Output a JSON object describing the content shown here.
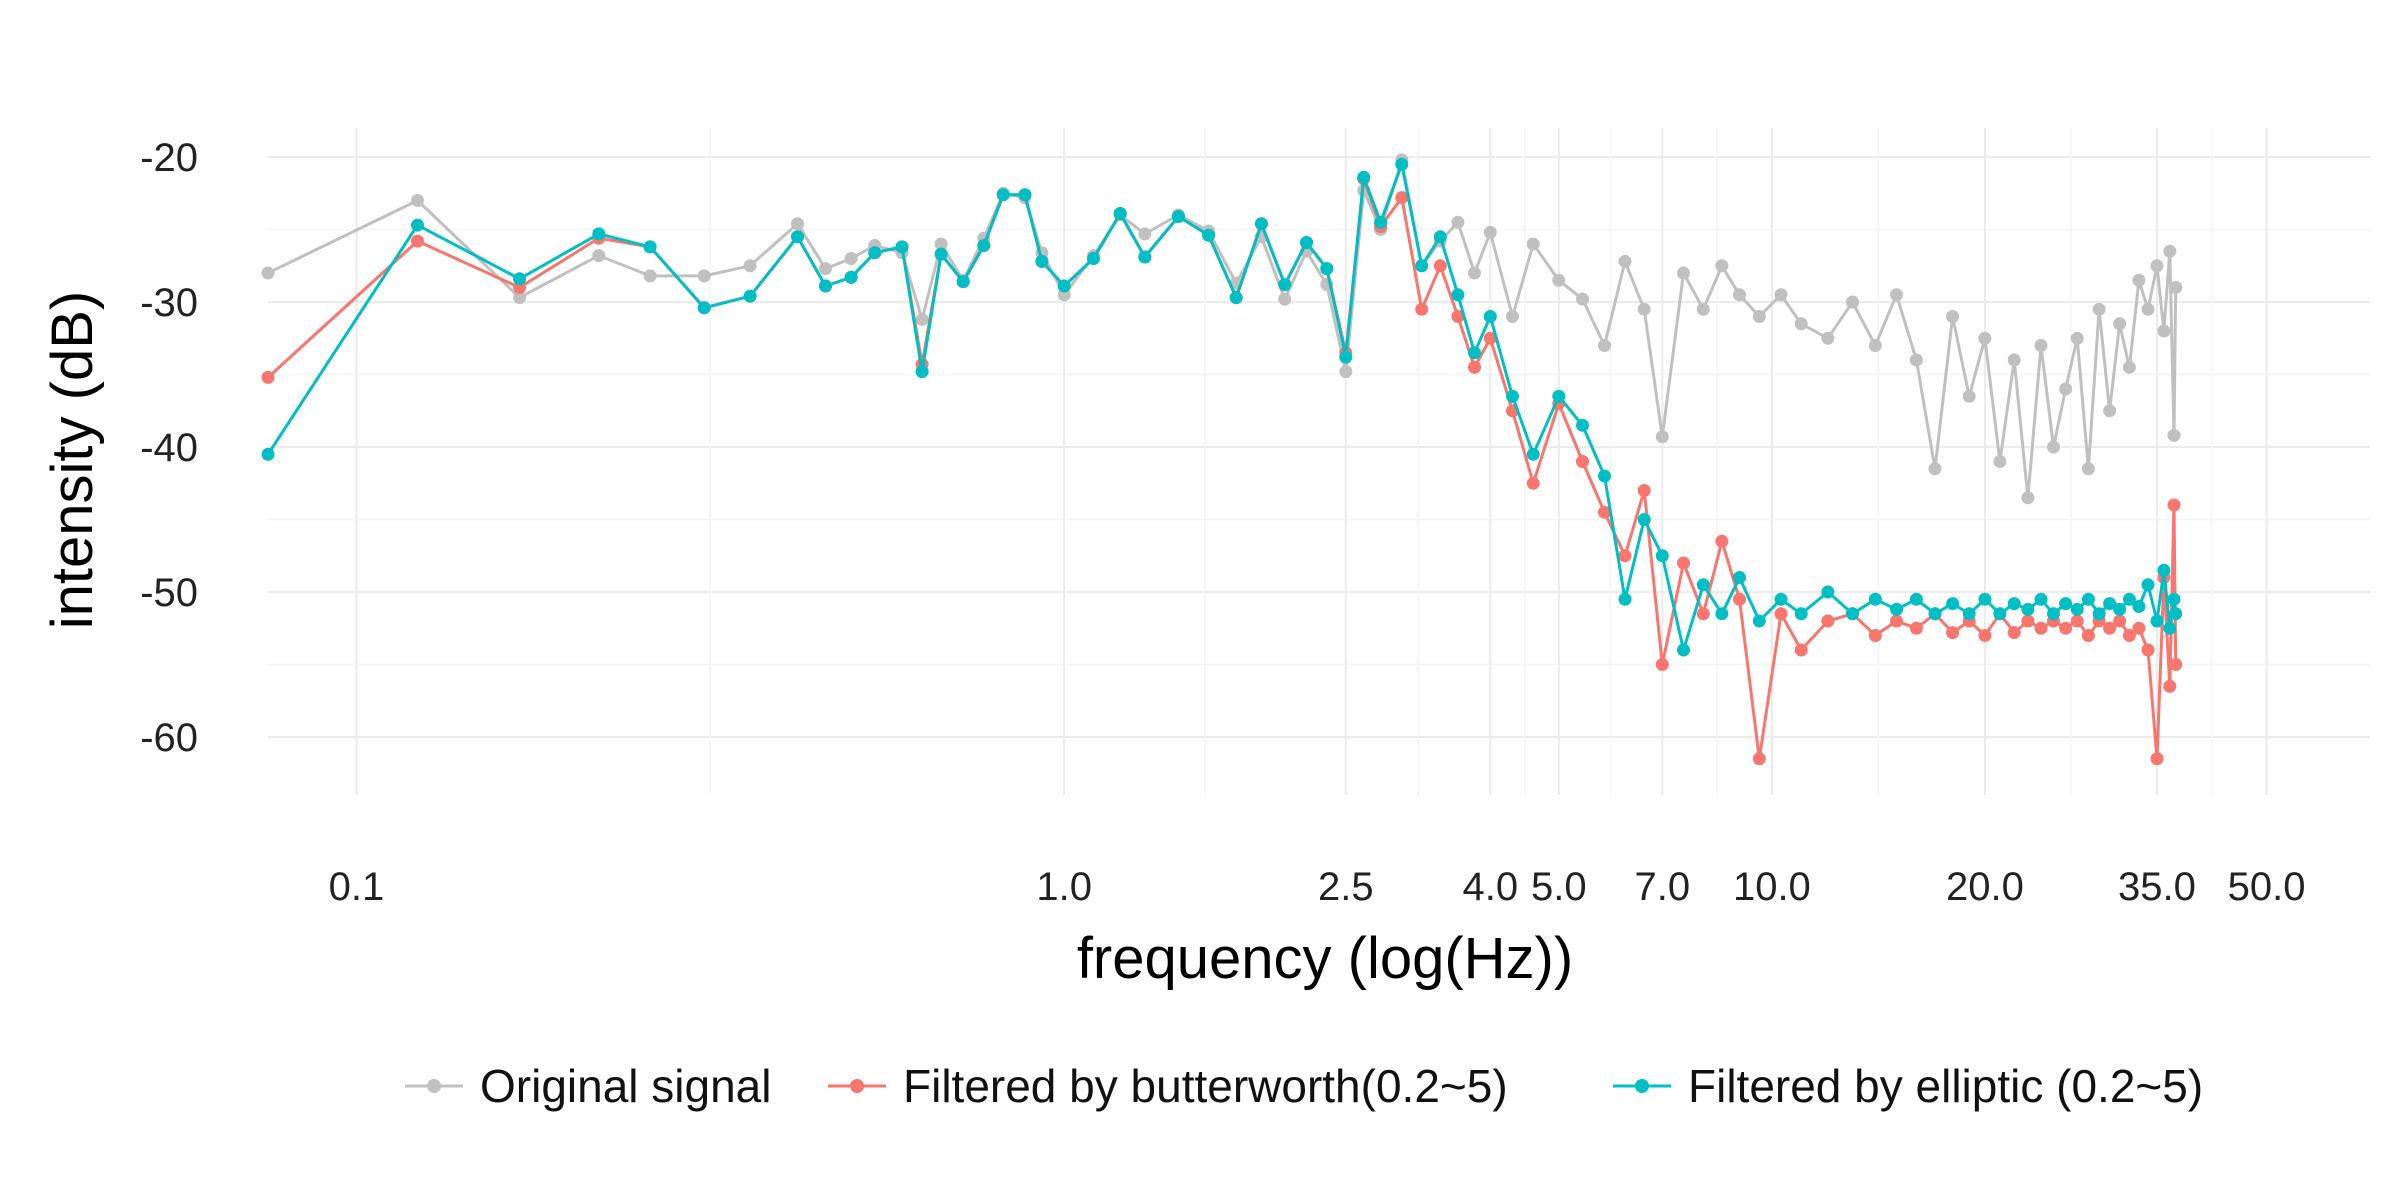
{
  "chart_data": {
    "type": "line",
    "xscale": "log",
    "xlabel": "frequency (log(Hz))",
    "ylabel": "intensity (dB)",
    "xlim": [
      0.075,
      70
    ],
    "ylim": [
      -64,
      -18
    ],
    "x_ticks": [
      {
        "value": 0.1,
        "label": "0.1"
      },
      {
        "value": 1.0,
        "label": "1.0"
      },
      {
        "value": 2.5,
        "label": "2.5"
      },
      {
        "value": 4.0,
        "label": "4.0"
      },
      {
        "value": 5.0,
        "label": "5.0"
      },
      {
        "value": 7.0,
        "label": "7.0"
      },
      {
        "value": 10.0,
        "label": "10.0"
      },
      {
        "value": 20.0,
        "label": "20.0"
      },
      {
        "value": 35.0,
        "label": "35.0"
      },
      {
        "value": 50.0,
        "label": "50.0"
      }
    ],
    "y_ticks": [
      {
        "value": -20,
        "label": "-20"
      },
      {
        "value": -30,
        "label": "-30"
      },
      {
        "value": -40,
        "label": "-40"
      },
      {
        "value": -50,
        "label": "-50"
      },
      {
        "value": -60,
        "label": "-60"
      }
    ],
    "grid": true,
    "legend_position": "bottom",
    "series": [
      {
        "name": "Original signal",
        "color": "#c0c0c0",
        "points": [
          [
            0.075,
            -28.0
          ],
          [
            0.122,
            -23.0
          ],
          [
            0.17,
            -29.7
          ],
          [
            0.22,
            -26.8
          ],
          [
            0.26,
            -28.2
          ],
          [
            0.31,
            -28.2
          ],
          [
            0.36,
            -27.5
          ],
          [
            0.42,
            -24.6
          ],
          [
            0.46,
            -27.7
          ],
          [
            0.5,
            -27.0
          ],
          [
            0.54,
            -26.1
          ],
          [
            0.59,
            -26.6
          ],
          [
            0.63,
            -31.2
          ],
          [
            0.67,
            -26.0
          ],
          [
            0.72,
            -28.5
          ],
          [
            0.77,
            -25.6
          ],
          [
            0.82,
            -22.5
          ],
          [
            0.88,
            -22.8
          ],
          [
            0.93,
            -26.6
          ],
          [
            1.0,
            -29.5
          ],
          [
            1.1,
            -26.8
          ],
          [
            1.2,
            -24.0
          ],
          [
            1.3,
            -25.3
          ],
          [
            1.45,
            -24.0
          ],
          [
            1.6,
            -25.1
          ],
          [
            1.75,
            -28.7
          ],
          [
            1.9,
            -25.5
          ],
          [
            2.05,
            -29.8
          ],
          [
            2.2,
            -26.5
          ],
          [
            2.35,
            -28.8
          ],
          [
            2.5,
            -34.8
          ],
          [
            2.65,
            -22.3
          ],
          [
            2.8,
            -25.0
          ],
          [
            3.0,
            -20.2
          ],
          [
            3.2,
            -27.5
          ],
          [
            3.4,
            -25.8
          ],
          [
            3.6,
            -24.5
          ],
          [
            3.8,
            -28.0
          ],
          [
            4.0,
            -25.2
          ],
          [
            4.3,
            -31.0
          ],
          [
            4.6,
            -26.0
          ],
          [
            5.0,
            -28.5
          ],
          [
            5.4,
            -29.8
          ],
          [
            5.8,
            -33.0
          ],
          [
            6.2,
            -27.2
          ],
          [
            6.6,
            -30.5
          ],
          [
            7.0,
            -39.3
          ],
          [
            7.5,
            -28.0
          ],
          [
            8.0,
            -30.5
          ],
          [
            8.5,
            -27.5
          ],
          [
            9.0,
            -29.5
          ],
          [
            9.6,
            -31.0
          ],
          [
            10.3,
            -29.5
          ],
          [
            11.0,
            -31.5
          ],
          [
            12.0,
            -32.5
          ],
          [
            13.0,
            -30.0
          ],
          [
            14.0,
            -33.0
          ],
          [
            15.0,
            -29.5
          ],
          [
            16.0,
            -34.0
          ],
          [
            17.0,
            -41.5
          ],
          [
            18.0,
            -31.0
          ],
          [
            19.0,
            -36.5
          ],
          [
            20.0,
            -32.5
          ],
          [
            21.0,
            -41.0
          ],
          [
            22.0,
            -34.0
          ],
          [
            23.0,
            -43.5
          ],
          [
            24.0,
            -33.0
          ],
          [
            25.0,
            -40.0
          ],
          [
            26.0,
            -36.0
          ],
          [
            27.0,
            -32.5
          ],
          [
            28.0,
            -41.5
          ],
          [
            29.0,
            -30.5
          ],
          [
            30.0,
            -37.5
          ],
          [
            31.0,
            -31.5
          ],
          [
            32.0,
            -34.5
          ],
          [
            33.0,
            -28.5
          ],
          [
            34.0,
            -30.5
          ],
          [
            35.0,
            -27.5
          ],
          [
            35.8,
            -32.0
          ],
          [
            36.5,
            -26.5
          ],
          [
            37.0,
            -39.2
          ],
          [
            37.2,
            -29.0
          ]
        ]
      },
      {
        "name": "Filtered by butterworth(0.2~5)",
        "color": "#f8766d",
        "points": [
          [
            0.075,
            -35.2
          ],
          [
            0.122,
            -25.8
          ],
          [
            0.17,
            -29.0
          ],
          [
            0.22,
            -25.6
          ],
          [
            0.26,
            -26.2
          ],
          [
            0.31,
            -30.4
          ],
          [
            0.36,
            -29.6
          ],
          [
            0.42,
            -25.5
          ],
          [
            0.46,
            -28.9
          ],
          [
            0.5,
            -28.3
          ],
          [
            0.54,
            -26.6
          ],
          [
            0.59,
            -26.2
          ],
          [
            0.63,
            -34.3
          ],
          [
            0.67,
            -26.7
          ],
          [
            0.72,
            -28.6
          ],
          [
            0.77,
            -26.1
          ],
          [
            0.82,
            -22.6
          ],
          [
            0.88,
            -22.6
          ],
          [
            0.93,
            -27.2
          ],
          [
            1.0,
            -28.9
          ],
          [
            1.1,
            -27.0
          ],
          [
            1.2,
            -23.9
          ],
          [
            1.3,
            -26.9
          ],
          [
            1.45,
            -24.1
          ],
          [
            1.6,
            -25.4
          ],
          [
            1.75,
            -29.7
          ],
          [
            1.9,
            -24.6
          ],
          [
            2.05,
            -28.8
          ],
          [
            2.2,
            -25.9
          ],
          [
            2.35,
            -27.7
          ],
          [
            2.5,
            -33.5
          ],
          [
            2.65,
            -21.5
          ],
          [
            2.8,
            -24.8
          ],
          [
            3.0,
            -22.8
          ],
          [
            3.2,
            -30.5
          ],
          [
            3.4,
            -27.5
          ],
          [
            3.6,
            -31.0
          ],
          [
            3.8,
            -34.5
          ],
          [
            4.0,
            -32.5
          ],
          [
            4.3,
            -37.5
          ],
          [
            4.6,
            -42.5
          ],
          [
            5.0,
            -37.0
          ],
          [
            5.4,
            -41.0
          ],
          [
            5.8,
            -44.5
          ],
          [
            6.2,
            -47.5
          ],
          [
            6.6,
            -43.0
          ],
          [
            7.0,
            -55.0
          ],
          [
            7.5,
            -48.0
          ],
          [
            8.0,
            -51.5
          ],
          [
            8.5,
            -46.5
          ],
          [
            9.0,
            -50.5
          ],
          [
            9.6,
            -61.5
          ],
          [
            10.3,
            -51.5
          ],
          [
            11.0,
            -54.0
          ],
          [
            12.0,
            -52.0
          ],
          [
            13.0,
            -51.5
          ],
          [
            14.0,
            -53.0
          ],
          [
            15.0,
            -52.0
          ],
          [
            16.0,
            -52.5
          ],
          [
            17.0,
            -51.5
          ],
          [
            18.0,
            -52.8
          ],
          [
            19.0,
            -52.0
          ],
          [
            20.0,
            -53.0
          ],
          [
            21.0,
            -51.5
          ],
          [
            22.0,
            -52.8
          ],
          [
            23.0,
            -52.0
          ],
          [
            24.0,
            -52.5
          ],
          [
            25.0,
            -52.0
          ],
          [
            26.0,
            -52.5
          ],
          [
            27.0,
            -52.0
          ],
          [
            28.0,
            -53.0
          ],
          [
            29.0,
            -52.0
          ],
          [
            30.0,
            -52.5
          ],
          [
            31.0,
            -52.0
          ],
          [
            32.0,
            -53.0
          ],
          [
            33.0,
            -52.5
          ],
          [
            34.0,
            -54.0
          ],
          [
            35.0,
            -61.5
          ],
          [
            35.8,
            -49.0
          ],
          [
            36.5,
            -56.5
          ],
          [
            37.0,
            -44.0
          ],
          [
            37.2,
            -55.0
          ]
        ]
      },
      {
        "name": "Filtered by elliptic (0.2~5)",
        "color": "#00bfc4",
        "points": [
          [
            0.075,
            -40.5
          ],
          [
            0.122,
            -24.7
          ],
          [
            0.17,
            -28.4
          ],
          [
            0.22,
            -25.3
          ],
          [
            0.26,
            -26.2
          ],
          [
            0.31,
            -30.4
          ],
          [
            0.36,
            -29.6
          ],
          [
            0.42,
            -25.5
          ],
          [
            0.46,
            -28.9
          ],
          [
            0.5,
            -28.3
          ],
          [
            0.54,
            -26.6
          ],
          [
            0.59,
            -26.2
          ],
          [
            0.63,
            -34.8
          ],
          [
            0.67,
            -26.7
          ],
          [
            0.72,
            -28.6
          ],
          [
            0.77,
            -26.1
          ],
          [
            0.82,
            -22.6
          ],
          [
            0.88,
            -22.6
          ],
          [
            0.93,
            -27.2
          ],
          [
            1.0,
            -28.9
          ],
          [
            1.1,
            -27.0
          ],
          [
            1.2,
            -23.9
          ],
          [
            1.3,
            -26.9
          ],
          [
            1.45,
            -24.1
          ],
          [
            1.6,
            -25.4
          ],
          [
            1.75,
            -29.7
          ],
          [
            1.9,
            -24.6
          ],
          [
            2.05,
            -28.8
          ],
          [
            2.2,
            -25.9
          ],
          [
            2.35,
            -27.7
          ],
          [
            2.5,
            -33.8
          ],
          [
            2.65,
            -21.4
          ],
          [
            2.8,
            -24.5
          ],
          [
            3.0,
            -20.5
          ],
          [
            3.2,
            -27.5
          ],
          [
            3.4,
            -25.5
          ],
          [
            3.6,
            -29.5
          ],
          [
            3.8,
            -33.5
          ],
          [
            4.0,
            -31.0
          ],
          [
            4.3,
            -36.5
          ],
          [
            4.6,
            -40.5
          ],
          [
            5.0,
            -36.5
          ],
          [
            5.4,
            -38.5
          ],
          [
            5.8,
            -42.0
          ],
          [
            6.2,
            -50.5
          ],
          [
            6.6,
            -45.0
          ],
          [
            7.0,
            -47.5
          ],
          [
            7.5,
            -54.0
          ],
          [
            8.0,
            -49.5
          ],
          [
            8.5,
            -51.5
          ],
          [
            9.0,
            -49.0
          ],
          [
            9.6,
            -52.0
          ],
          [
            10.3,
            -50.5
          ],
          [
            11.0,
            -51.5
          ],
          [
            12.0,
            -50.0
          ],
          [
            13.0,
            -51.5
          ],
          [
            14.0,
            -50.5
          ],
          [
            15.0,
            -51.2
          ],
          [
            16.0,
            -50.5
          ],
          [
            17.0,
            -51.5
          ],
          [
            18.0,
            -50.8
          ],
          [
            19.0,
            -51.5
          ],
          [
            20.0,
            -50.5
          ],
          [
            21.0,
            -51.5
          ],
          [
            22.0,
            -50.8
          ],
          [
            23.0,
            -51.2
          ],
          [
            24.0,
            -50.5
          ],
          [
            25.0,
            -51.5
          ],
          [
            26.0,
            -50.8
          ],
          [
            27.0,
            -51.2
          ],
          [
            28.0,
            -50.5
          ],
          [
            29.0,
            -51.5
          ],
          [
            30.0,
            -50.8
          ],
          [
            31.0,
            -51.2
          ],
          [
            32.0,
            -50.5
          ],
          [
            33.0,
            -51.0
          ],
          [
            34.0,
            -49.5
          ],
          [
            35.0,
            -52.0
          ],
          [
            35.8,
            -48.5
          ],
          [
            36.5,
            -52.5
          ],
          [
            37.0,
            -50.5
          ],
          [
            37.2,
            -51.5
          ]
        ]
      }
    ]
  }
}
